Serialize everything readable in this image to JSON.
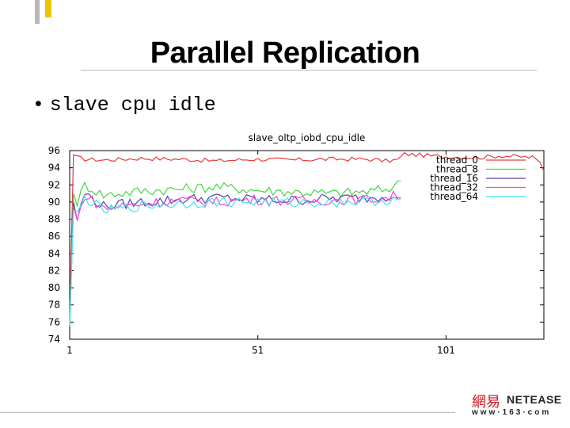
{
  "slide": {
    "title": "Parallel Replication",
    "bullet": "slave cpu idle"
  },
  "logo": {
    "chinese": "網易",
    "english": "NETEASE",
    "url": "www·163·com"
  },
  "colors": {
    "thread_0": "#e83a3a",
    "thread_8": "#3fd93f",
    "thread_16": "#5a3fb0",
    "thread_32": "#ff3fe0",
    "thread_64": "#3fe8e8",
    "accent_yellow": "#f2c200",
    "logo_red": "#c8161d"
  },
  "chart_data": {
    "type": "line",
    "title": "slave_oltp_iobd_cpu_idle",
    "xlabel": "",
    "ylabel": "",
    "xlim": [
      1,
      127
    ],
    "ylim": [
      74,
      96
    ],
    "yticks": [
      74,
      76,
      78,
      80,
      82,
      84,
      86,
      88,
      90,
      92,
      94,
      96
    ],
    "xticks": [
      1,
      51,
      101
    ],
    "grid": false,
    "legend": "top-right",
    "series": [
      {
        "name": "thread_0",
        "x": [
          1,
          2,
          3,
          5,
          10,
          20,
          30,
          40,
          50,
          60,
          70,
          80,
          85,
          88,
          90,
          100,
          110,
          115,
          120,
          124,
          126,
          127
        ],
        "values": [
          76.5,
          95.5,
          95.2,
          95.0,
          94.9,
          95.1,
          95.0,
          94.8,
          95.0,
          94.9,
          95.0,
          95.0,
          94.8,
          94.9,
          95.6,
          95.3,
          95.2,
          95.4,
          95.3,
          95.2,
          94.6,
          93.6
        ]
      },
      {
        "name": "thread_8",
        "x": [
          1,
          2,
          3,
          5,
          10,
          20,
          30,
          40,
          50,
          60,
          70,
          80,
          85,
          88,
          89
        ],
        "values": [
          75.5,
          91.0,
          90.0,
          92.0,
          90.8,
          91.3,
          91.5,
          91.8,
          91.4,
          91.2,
          91.0,
          91.2,
          91.5,
          92.0,
          92.5
        ]
      },
      {
        "name": "thread_16",
        "x": [
          1,
          2,
          3,
          5,
          10,
          20,
          30,
          40,
          50,
          60,
          70,
          80,
          85,
          88,
          89
        ],
        "values": [
          75.5,
          90.0,
          88.0,
          91.0,
          89.5,
          90.0,
          90.3,
          90.5,
          90.3,
          90.2,
          90.4,
          90.5,
          90.7,
          91.0,
          90.5
        ]
      },
      {
        "name": "thread_32",
        "x": [
          1,
          2,
          3,
          5,
          10,
          20,
          30,
          40,
          50,
          60,
          70,
          80,
          85,
          88,
          89
        ],
        "values": [
          75.5,
          89.5,
          87.8,
          90.8,
          89.3,
          89.8,
          90.2,
          90.0,
          90.3,
          90.1,
          90.2,
          90.3,
          90.5,
          90.8,
          90.5
        ]
      },
      {
        "name": "thread_64",
        "x": [
          1,
          2,
          3,
          5,
          10,
          20,
          30,
          40,
          50,
          60,
          70,
          80,
          85,
          88,
          89
        ],
        "values": [
          75.5,
          89.0,
          88.5,
          90.5,
          89.0,
          89.5,
          89.8,
          90.0,
          90.0,
          89.9,
          90.0,
          90.1,
          90.2,
          90.4,
          90.3
        ]
      }
    ]
  }
}
